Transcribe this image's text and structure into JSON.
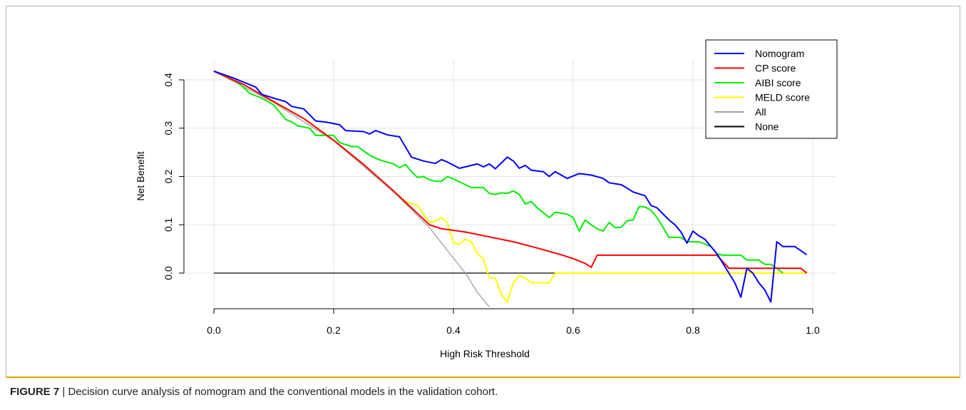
{
  "figure": {
    "label": "FIGURE 7",
    "separator": "|",
    "caption": "Decision curve analysis of nomogram and the conventional models in the validation cohort.",
    "accent_color": "#e2a400"
  },
  "chart_data": {
    "type": "line",
    "title": "",
    "xlabel": "High Risk Threshold",
    "ylabel": "Net Benefit",
    "xlim": [
      0.0,
      1.0
    ],
    "ylim": [
      -0.07,
      0.43
    ],
    "xticks": [
      0.0,
      0.2,
      0.4,
      0.6,
      0.8,
      1.0
    ],
    "xtick_labels": [
      "0.0",
      "0.2",
      "0.4",
      "0.6",
      "0.8",
      "1.0"
    ],
    "yticks": [
      0.0,
      0.1,
      0.2,
      0.3,
      0.4
    ],
    "ytick_labels": [
      "0.0",
      "0.1",
      "0.2",
      "0.3",
      "0.4"
    ],
    "grid": true,
    "legend_position": "top-right",
    "series": [
      {
        "name": "Nomogram",
        "color": "#0000ff",
        "points": [
          [
            0.0,
            0.418
          ],
          [
            0.03,
            0.405
          ],
          [
            0.07,
            0.385
          ],
          [
            0.08,
            0.37
          ],
          [
            0.1,
            0.362
          ],
          [
            0.12,
            0.355
          ],
          [
            0.13,
            0.345
          ],
          [
            0.15,
            0.34
          ],
          [
            0.17,
            0.315
          ],
          [
            0.19,
            0.312
          ],
          [
            0.21,
            0.307
          ],
          [
            0.22,
            0.295
          ],
          [
            0.25,
            0.293
          ],
          [
            0.26,
            0.288
          ],
          [
            0.27,
            0.295
          ],
          [
            0.29,
            0.286
          ],
          [
            0.31,
            0.282
          ],
          [
            0.33,
            0.24
          ],
          [
            0.35,
            0.232
          ],
          [
            0.37,
            0.227
          ],
          [
            0.38,
            0.235
          ],
          [
            0.39,
            0.23
          ],
          [
            0.41,
            0.217
          ],
          [
            0.42,
            0.22
          ],
          [
            0.44,
            0.226
          ],
          [
            0.45,
            0.22
          ],
          [
            0.46,
            0.226
          ],
          [
            0.47,
            0.216
          ],
          [
            0.48,
            0.228
          ],
          [
            0.49,
            0.24
          ],
          [
            0.5,
            0.232
          ],
          [
            0.51,
            0.217
          ],
          [
            0.52,
            0.223
          ],
          [
            0.53,
            0.213
          ],
          [
            0.55,
            0.21
          ],
          [
            0.56,
            0.2
          ],
          [
            0.57,
            0.21
          ],
          [
            0.59,
            0.196
          ],
          [
            0.61,
            0.206
          ],
          [
            0.63,
            0.203
          ],
          [
            0.65,
            0.196
          ],
          [
            0.66,
            0.187
          ],
          [
            0.68,
            0.183
          ],
          [
            0.69,
            0.176
          ],
          [
            0.7,
            0.168
          ],
          [
            0.72,
            0.16
          ],
          [
            0.73,
            0.14
          ],
          [
            0.74,
            0.135
          ],
          [
            0.76,
            0.11
          ],
          [
            0.77,
            0.1
          ],
          [
            0.78,
            0.085
          ],
          [
            0.79,
            0.062
          ],
          [
            0.8,
            0.087
          ],
          [
            0.81,
            0.077
          ],
          [
            0.82,
            0.07
          ],
          [
            0.83,
            0.055
          ],
          [
            0.84,
            0.04
          ],
          [
            0.85,
            0.02
          ],
          [
            0.86,
            0.0
          ],
          [
            0.87,
            -0.02
          ],
          [
            0.88,
            -0.05
          ],
          [
            0.89,
            0.01
          ],
          [
            0.9,
            0.0
          ],
          [
            0.91,
            -0.02
          ],
          [
            0.92,
            -0.035
          ],
          [
            0.93,
            -0.06
          ],
          [
            0.94,
            0.065
          ],
          [
            0.95,
            0.055
          ],
          [
            0.97,
            0.055
          ],
          [
            0.99,
            0.038
          ]
        ]
      },
      {
        "name": "CP score",
        "color": "#ff0000",
        "points": [
          [
            0.0,
            0.418
          ],
          [
            0.05,
            0.39
          ],
          [
            0.1,
            0.355
          ],
          [
            0.15,
            0.32
          ],
          [
            0.2,
            0.275
          ],
          [
            0.25,
            0.225
          ],
          [
            0.3,
            0.17
          ],
          [
            0.33,
            0.135
          ],
          [
            0.36,
            0.1
          ],
          [
            0.38,
            0.092
          ],
          [
            0.42,
            0.085
          ],
          [
            0.46,
            0.075
          ],
          [
            0.5,
            0.065
          ],
          [
            0.54,
            0.052
          ],
          [
            0.58,
            0.038
          ],
          [
            0.6,
            0.03
          ],
          [
            0.62,
            0.02
          ],
          [
            0.63,
            0.012
          ],
          [
            0.64,
            0.037
          ],
          [
            0.84,
            0.037
          ],
          [
            0.86,
            0.01
          ],
          [
            0.98,
            0.01
          ],
          [
            0.99,
            0.0
          ]
        ]
      },
      {
        "name": "AIBI score",
        "color": "#00ee00",
        "points": [
          [
            0.0,
            0.418
          ],
          [
            0.04,
            0.395
          ],
          [
            0.06,
            0.372
          ],
          [
            0.08,
            0.362
          ],
          [
            0.1,
            0.348
          ],
          [
            0.12,
            0.318
          ],
          [
            0.13,
            0.313
          ],
          [
            0.14,
            0.305
          ],
          [
            0.16,
            0.3
          ],
          [
            0.17,
            0.285
          ],
          [
            0.19,
            0.285
          ],
          [
            0.2,
            0.285
          ],
          [
            0.21,
            0.27
          ],
          [
            0.23,
            0.262
          ],
          [
            0.24,
            0.262
          ],
          [
            0.26,
            0.244
          ],
          [
            0.27,
            0.238
          ],
          [
            0.28,
            0.233
          ],
          [
            0.3,
            0.226
          ],
          [
            0.31,
            0.218
          ],
          [
            0.32,
            0.225
          ],
          [
            0.33,
            0.21
          ],
          [
            0.34,
            0.198
          ],
          [
            0.35,
            0.2
          ],
          [
            0.36,
            0.193
          ],
          [
            0.37,
            0.19
          ],
          [
            0.38,
            0.19
          ],
          [
            0.39,
            0.2
          ],
          [
            0.4,
            0.195
          ],
          [
            0.42,
            0.183
          ],
          [
            0.43,
            0.177
          ],
          [
            0.45,
            0.177
          ],
          [
            0.46,
            0.165
          ],
          [
            0.47,
            0.163
          ],
          [
            0.48,
            0.166
          ],
          [
            0.49,
            0.165
          ],
          [
            0.5,
            0.17
          ],
          [
            0.51,
            0.163
          ],
          [
            0.52,
            0.143
          ],
          [
            0.53,
            0.148
          ],
          [
            0.54,
            0.135
          ],
          [
            0.55,
            0.125
          ],
          [
            0.56,
            0.115
          ],
          [
            0.57,
            0.126
          ],
          [
            0.59,
            0.122
          ],
          [
            0.6,
            0.115
          ],
          [
            0.61,
            0.087
          ],
          [
            0.62,
            0.11
          ],
          [
            0.63,
            0.1
          ],
          [
            0.64,
            0.092
          ],
          [
            0.65,
            0.087
          ],
          [
            0.66,
            0.105
          ],
          [
            0.67,
            0.094
          ],
          [
            0.68,
            0.095
          ],
          [
            0.69,
            0.108
          ],
          [
            0.7,
            0.11
          ],
          [
            0.71,
            0.138
          ],
          [
            0.72,
            0.137
          ],
          [
            0.73,
            0.13
          ],
          [
            0.74,
            0.115
          ],
          [
            0.75,
            0.095
          ],
          [
            0.76,
            0.074
          ],
          [
            0.77,
            0.074
          ],
          [
            0.78,
            0.074
          ],
          [
            0.79,
            0.065
          ],
          [
            0.81,
            0.065
          ],
          [
            0.83,
            0.055
          ],
          [
            0.84,
            0.04
          ],
          [
            0.85,
            0.037
          ],
          [
            0.87,
            0.037
          ],
          [
            0.88,
            0.037
          ],
          [
            0.89,
            0.027
          ],
          [
            0.9,
            0.027
          ],
          [
            0.91,
            0.027
          ],
          [
            0.92,
            0.018
          ],
          [
            0.93,
            0.018
          ],
          [
            0.94,
            0.01
          ],
          [
            0.95,
            0.0
          ]
        ]
      },
      {
        "name": "MELD score",
        "color": "#ffff00",
        "points": [
          [
            0.0,
            0.418
          ],
          [
            0.05,
            0.39
          ],
          [
            0.1,
            0.355
          ],
          [
            0.15,
            0.32
          ],
          [
            0.2,
            0.275
          ],
          [
            0.25,
            0.225
          ],
          [
            0.3,
            0.17
          ],
          [
            0.32,
            0.148
          ],
          [
            0.34,
            0.14
          ],
          [
            0.35,
            0.122
          ],
          [
            0.36,
            0.105
          ],
          [
            0.37,
            0.108
          ],
          [
            0.38,
            0.115
          ],
          [
            0.39,
            0.104
          ],
          [
            0.4,
            0.062
          ],
          [
            0.41,
            0.06
          ],
          [
            0.42,
            0.07
          ],
          [
            0.43,
            0.065
          ],
          [
            0.44,
            0.04
          ],
          [
            0.45,
            0.03
          ],
          [
            0.46,
            -0.01
          ],
          [
            0.47,
            -0.01
          ],
          [
            0.48,
            -0.045
          ],
          [
            0.49,
            -0.06
          ],
          [
            0.5,
            -0.02
          ],
          [
            0.51,
            -0.005
          ],
          [
            0.52,
            -0.01
          ],
          [
            0.53,
            -0.02
          ],
          [
            0.56,
            -0.02
          ],
          [
            0.57,
            0.0
          ],
          [
            0.99,
            0.0
          ]
        ]
      },
      {
        "name": "All",
        "color": "#a0a0a0",
        "points": [
          [
            0.0,
            0.418
          ],
          [
            0.1,
            0.353
          ],
          [
            0.2,
            0.274
          ],
          [
            0.3,
            0.168
          ],
          [
            0.36,
            0.094
          ],
          [
            0.4,
            0.031
          ],
          [
            0.42,
            0.0
          ],
          [
            0.44,
            -0.04
          ],
          [
            0.46,
            -0.07
          ]
        ]
      },
      {
        "name": "None",
        "color": "#000000",
        "points": [
          [
            0.0,
            0.0
          ],
          [
            0.99,
            0.0
          ]
        ]
      }
    ]
  }
}
